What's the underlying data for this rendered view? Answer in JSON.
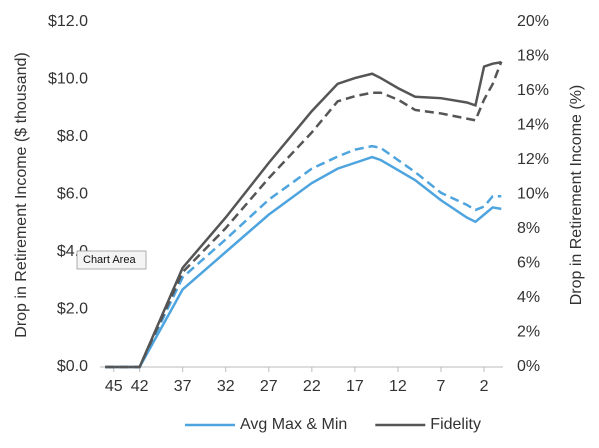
{
  "chart_data": {
    "type": "line",
    "x": [
      46,
      42,
      37,
      32,
      27,
      22,
      19,
      17,
      15,
      14,
      12,
      10,
      7,
      4,
      3,
      2,
      1,
      0
    ],
    "xlim": [
      46.6,
      -0.2
    ],
    "xticks": [
      45,
      42,
      37,
      32,
      27,
      22,
      17,
      12,
      7,
      2
    ],
    "ylim": [
      0,
      12
    ],
    "yticks": [
      {
        "value": 0,
        "label": "$0.0"
      },
      {
        "value": 2,
        "label": "$2.0"
      },
      {
        "value": 4,
        "label": "$4.0"
      },
      {
        "value": 6,
        "label": "$6.0"
      },
      {
        "value": 8,
        "label": "$8.0"
      },
      {
        "value": 10,
        "label": "$10.0"
      },
      {
        "value": 12,
        "label": "$12.0"
      }
    ],
    "y2lim": [
      0,
      20
    ],
    "y2ticks": [
      {
        "value": 0,
        "label": "0%"
      },
      {
        "value": 2,
        "label": "2%"
      },
      {
        "value": 4,
        "label": "4%"
      },
      {
        "value": 6,
        "label": "6%"
      },
      {
        "value": 8,
        "label": "8%"
      },
      {
        "value": 10,
        "label": "10%"
      },
      {
        "value": 12,
        "label": "12%"
      },
      {
        "value": 14,
        "label": "14%"
      },
      {
        "value": 16,
        "label": "16%"
      },
      {
        "value": 18,
        "label": "18%"
      },
      {
        "value": 20,
        "label": "20%"
      }
    ],
    "ylabel": "Drop in Retirement Income ($ thousand)",
    "y2label": "Drop in Retirement Income (%)",
    "tooltip": "Chart Area",
    "series": [
      {
        "name": "Avg Max & Min",
        "color": "#4ea4de",
        "dashed": false,
        "values": [
          0,
          0,
          2.7,
          4.0,
          5.3,
          6.4,
          6.9,
          7.1,
          7.3,
          7.2,
          6.85,
          6.5,
          5.8,
          5.2,
          5.05,
          5.3,
          5.55,
          5.5
        ]
      },
      {
        "name": "Fidelity",
        "color": "#555555",
        "dashed": false,
        "values": [
          0,
          0,
          3.45,
          5.2,
          7.1,
          8.9,
          9.85,
          10.05,
          10.2,
          10.05,
          9.7,
          9.4,
          9.35,
          9.2,
          9.1,
          10.45,
          10.55,
          10.6
        ]
      },
      {
        "color": "#4ea4de",
        "dashed": true,
        "axis": "y2",
        "values": [
          0,
          0,
          5.2,
          7.4,
          9.7,
          11.5,
          12.2,
          12.6,
          12.8,
          12.7,
          12.0,
          11.3,
          10.1,
          9.4,
          9.1,
          9.3,
          9.9,
          9.9
        ]
      },
      {
        "color": "#555555",
        "dashed": true,
        "axis": "y2",
        "values": [
          0,
          0,
          5.5,
          8.05,
          10.95,
          13.6,
          15.4,
          15.7,
          15.9,
          15.9,
          15.5,
          14.9,
          14.7,
          14.4,
          14.3,
          15.5,
          16.4,
          17.7
        ]
      }
    ]
  }
}
